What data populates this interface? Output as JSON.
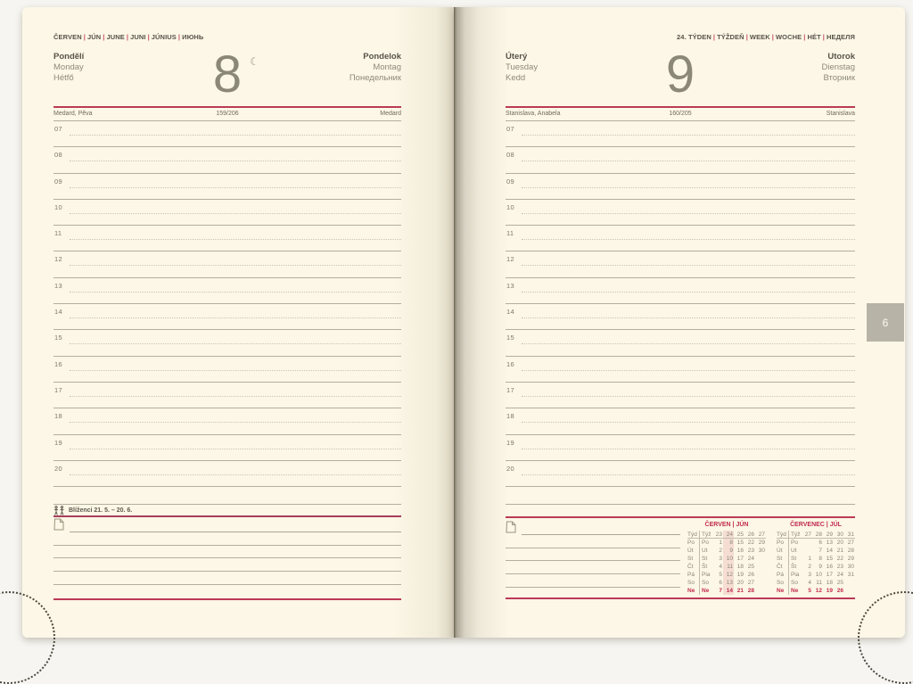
{
  "left_page": {
    "month_header_items": [
      "ČERVEN",
      "JÚN",
      "JUNE",
      "JUNI",
      "JÚNIUS",
      "ИЮНЬ"
    ],
    "day_names_left": [
      "Pondělí",
      "Monday",
      "Hétfő"
    ],
    "day_number": "8",
    "moon_icon": "☾",
    "day_names_right": [
      "Pondelok",
      "Montag",
      "Понедельник"
    ],
    "nameday_left": "Medard, Pěva",
    "day_counter": "159/206",
    "nameday_right": "Medard",
    "zodiac_label": "Blíženci 21. 5. – 20. 6."
  },
  "right_page": {
    "week_header_items": [
      "24. TÝDEN",
      "TÝŽDEŇ",
      "WEEK",
      "WOCHE",
      "HÉT",
      "НЕДЕЛЯ"
    ],
    "day_names_left": [
      "Úterý",
      "Tuesday",
      "Kedd"
    ],
    "day_number": "9",
    "day_names_right": [
      "Utorok",
      "Dienstag",
      "Вторник"
    ],
    "nameday_left": "Stanislava, Anabela",
    "day_counter": "160/205",
    "nameday_right": "Stanislava",
    "month_tab": "6"
  },
  "hours": [
    "07",
    "08",
    "09",
    "10",
    "11",
    "12",
    "13",
    "14",
    "15",
    "16",
    "17",
    "18",
    "19",
    "20"
  ],
  "calendars": [
    {
      "title": "ČERVEN | JÚN",
      "highlight_col": 1,
      "rows": [
        {
          "lab1": "Týd",
          "lab2": "Týž",
          "vals": [
            "23",
            "24",
            "25",
            "26",
            "27"
          ],
          "type": "week"
        },
        {
          "lab1": "Po",
          "lab2": "Po",
          "vals": [
            "1",
            "8",
            "15",
            "22",
            "29"
          ],
          "type": "day"
        },
        {
          "lab1": "Út",
          "lab2": "Ut",
          "vals": [
            "2",
            "9",
            "16",
            "23",
            "30"
          ],
          "type": "day"
        },
        {
          "lab1": "St",
          "lab2": "St",
          "vals": [
            "3",
            "10",
            "17",
            "24",
            ""
          ],
          "type": "day"
        },
        {
          "lab1": "Čt",
          "lab2": "Št",
          "vals": [
            "4",
            "11",
            "18",
            "25",
            ""
          ],
          "type": "day"
        },
        {
          "lab1": "Pá",
          "lab2": "Pia",
          "vals": [
            "5",
            "12",
            "19",
            "26",
            ""
          ],
          "type": "day"
        },
        {
          "lab1": "So",
          "lab2": "So",
          "vals": [
            "6",
            "13",
            "20",
            "27",
            ""
          ],
          "type": "day"
        },
        {
          "lab1": "Ne",
          "lab2": "Ne",
          "vals": [
            "7",
            "14",
            "21",
            "28",
            ""
          ],
          "type": "sunday"
        }
      ]
    },
    {
      "title": "ČERVENEC | JÚL",
      "highlight_col": -1,
      "rows": [
        {
          "lab1": "Týd",
          "lab2": "Týž",
          "vals": [
            "27",
            "28",
            "29",
            "30",
            "31"
          ],
          "type": "week"
        },
        {
          "lab1": "Po",
          "lab2": "Po",
          "vals": [
            "",
            "6",
            "13",
            "20",
            "27"
          ],
          "type": "day"
        },
        {
          "lab1": "Út",
          "lab2": "Ut",
          "vals": [
            "",
            "7",
            "14",
            "21",
            "28"
          ],
          "type": "day"
        },
        {
          "lab1": "St",
          "lab2": "St",
          "vals": [
            "1",
            "8",
            "15",
            "22",
            "29"
          ],
          "type": "day"
        },
        {
          "lab1": "Čt",
          "lab2": "Št",
          "vals": [
            "2",
            "9",
            "16",
            "23",
            "30"
          ],
          "type": "day"
        },
        {
          "lab1": "Pá",
          "lab2": "Pia",
          "vals": [
            "3",
            "10",
            "17",
            "24",
            "31"
          ],
          "type": "day"
        },
        {
          "lab1": "So",
          "lab2": "So",
          "vals": [
            "4",
            "11",
            "18",
            "25",
            ""
          ],
          "type": "day"
        },
        {
          "lab1": "Ne",
          "lab2": "Ne",
          "vals": [
            "5",
            "12",
            "19",
            "26",
            ""
          ],
          "type": "sunday"
        }
      ]
    }
  ],
  "colors": {
    "accent_red": "#bc3a58",
    "calendar_red": "#c22c50",
    "page_cream": "#fcf7e6",
    "tab_gray": "#b8b3a7",
    "highlight_pink": "#f5ddd1",
    "line_gray": "#b3ae9d",
    "text_dark": "#57534a",
    "text_gray": "#8e8a7c"
  }
}
